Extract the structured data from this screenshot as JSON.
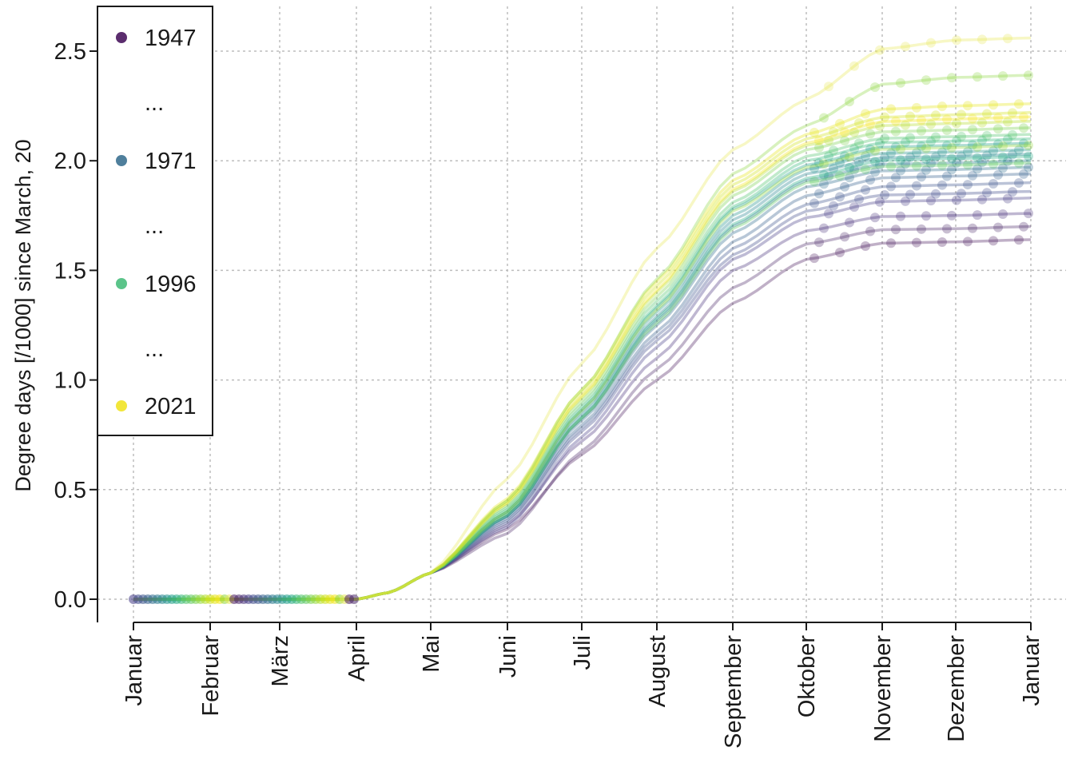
{
  "chart_data": {
    "type": "line",
    "ylabel": "Degree days [/1000] since March, 20",
    "ylim": [
      -0.1,
      2.7
    ],
    "yticks": [
      {
        "value": 0.0,
        "label": "0.0"
      },
      {
        "value": 0.5,
        "label": "0.5"
      },
      {
        "value": 1.0,
        "label": "1.0"
      },
      {
        "value": 1.5,
        "label": "1.5"
      },
      {
        "value": 2.0,
        "label": "2.0"
      },
      {
        "value": 2.5,
        "label": "2.5"
      }
    ],
    "x_ticks": [
      {
        "date": "Jan 1",
        "label": "Januar"
      },
      {
        "date": "Feb 1",
        "label": "Februar"
      },
      {
        "date": "Mar 1",
        "label": "März"
      },
      {
        "date": "Apr 1",
        "label": "April"
      },
      {
        "date": "May 1",
        "label": "Mai"
      },
      {
        "date": "Jun 1",
        "label": "Juni"
      },
      {
        "date": "Jul 1",
        "label": "Juli"
      },
      {
        "date": "Aug 1",
        "label": "August"
      },
      {
        "date": "Sep 1",
        "label": "September"
      },
      {
        "date": "Oct 1",
        "label": "Oktober"
      },
      {
        "date": "Nov 1",
        "label": "November"
      },
      {
        "date": "Dec 1",
        "label": "Dezember"
      },
      {
        "date": "Jan 1 (next year)",
        "label": "Januar"
      }
    ],
    "grid": true,
    "legend": {
      "placement": "top-left",
      "items": [
        {
          "label": "1947",
          "color": "#5b2d6e"
        },
        {
          "label": "...",
          "color": null
        },
        {
          "label": "1971",
          "color": "#4f7f9c"
        },
        {
          "label": "...",
          "color": null
        },
        {
          "label": "1996",
          "color": "#5bc48a"
        },
        {
          "label": "...",
          "color": null
        },
        {
          "label": "2021",
          "color": "#f2e63a"
        }
      ]
    },
    "series": [
      {
        "color": "#4a1c5e",
        "final": 1.64,
        "jun1": 0.32,
        "aug1": 1.0,
        "sep1": 1.35,
        "oct1": 1.55
      },
      {
        "color": "#4c2a6b",
        "final": 1.7,
        "jun1": 0.3,
        "aug1": 1.05,
        "sep1": 1.42,
        "oct1": 1.62
      },
      {
        "color": "#48327a",
        "final": 1.76,
        "jun1": 0.34,
        "aug1": 1.1,
        "sep1": 1.5,
        "oct1": 1.68
      },
      {
        "color": "#463c86",
        "final": 1.83,
        "jun1": 0.33,
        "aug1": 1.15,
        "sep1": 1.55,
        "oct1": 1.74
      },
      {
        "color": "#3f4a8a",
        "final": 1.86,
        "jun1": 0.35,
        "aug1": 1.18,
        "sep1": 1.57,
        "oct1": 1.77
      },
      {
        "color": "#3b528b",
        "final": 1.9,
        "jun1": 0.36,
        "aug1": 1.2,
        "sep1": 1.6,
        "oct1": 1.8
      },
      {
        "color": "#355f8d",
        "final": 1.94,
        "jun1": 0.37,
        "aug1": 1.22,
        "sep1": 1.63,
        "oct1": 1.84
      },
      {
        "color": "#2f6c8e",
        "final": 1.97,
        "jun1": 0.38,
        "aug1": 1.25,
        "sep1": 1.67,
        "oct1": 1.88
      },
      {
        "color": "#2a788e",
        "final": 2.0,
        "jun1": 0.38,
        "aug1": 1.27,
        "sep1": 1.7,
        "oct1": 1.91
      },
      {
        "color": "#25848e",
        "final": 2.03,
        "jun1": 0.39,
        "aug1": 1.29,
        "sep1": 1.73,
        "oct1": 1.94
      },
      {
        "color": "#21918c",
        "final": 2.05,
        "jun1": 0.4,
        "aug1": 1.31,
        "sep1": 1.75,
        "oct1": 1.96
      },
      {
        "color": "#1f9e89",
        "final": 2.08,
        "jun1": 0.4,
        "aug1": 1.33,
        "sep1": 1.78,
        "oct1": 1.98
      },
      {
        "color": "#22a884",
        "final": 2.02,
        "jun1": 0.38,
        "aug1": 1.28,
        "sep1": 1.71,
        "oct1": 1.92
      },
      {
        "color": "#35b779",
        "final": 2.1,
        "jun1": 0.41,
        "aug1": 1.34,
        "sep1": 1.79,
        "oct1": 2.0
      },
      {
        "color": "#4ec36b",
        "final": 2.12,
        "jun1": 0.42,
        "aug1": 1.36,
        "sep1": 1.81,
        "oct1": 2.02
      },
      {
        "color": "#5ec962",
        "final": 1.99,
        "jun1": 0.39,
        "aug1": 1.26,
        "sep1": 1.69,
        "oct1": 1.9
      },
      {
        "color": "#7ad151",
        "final": 2.15,
        "jun1": 0.43,
        "aug1": 1.38,
        "sep1": 1.84,
        "oct1": 2.05
      },
      {
        "color": "#95d840",
        "final": 2.07,
        "jun1": 0.4,
        "aug1": 1.32,
        "sep1": 1.77,
        "oct1": 1.97
      },
      {
        "color": "#b5de2b",
        "final": 2.18,
        "jun1": 0.44,
        "aug1": 1.4,
        "sep1": 1.86,
        "oct1": 2.07
      },
      {
        "color": "#d0e11c",
        "final": 2.22,
        "jun1": 0.45,
        "aug1": 1.43,
        "sep1": 1.89,
        "oct1": 2.1
      },
      {
        "color": "#e4e419",
        "final": 2.26,
        "jun1": 0.46,
        "aug1": 1.45,
        "sep1": 1.91,
        "oct1": 2.12
      },
      {
        "color": "#f4e61e",
        "final": 2.2,
        "jun1": 0.44,
        "aug1": 1.41,
        "sep1": 1.87,
        "oct1": 2.08
      },
      {
        "color": "#8fd744",
        "final": 2.39,
        "jun1": 0.45,
        "aug1": 1.46,
        "sep1": 1.94,
        "oct1": 2.16
      },
      {
        "color": "#e8e85a",
        "final": 2.56,
        "jun1": 0.55,
        "aug1": 1.6,
        "sep1": 2.05,
        "oct1": 2.28
      }
    ]
  }
}
